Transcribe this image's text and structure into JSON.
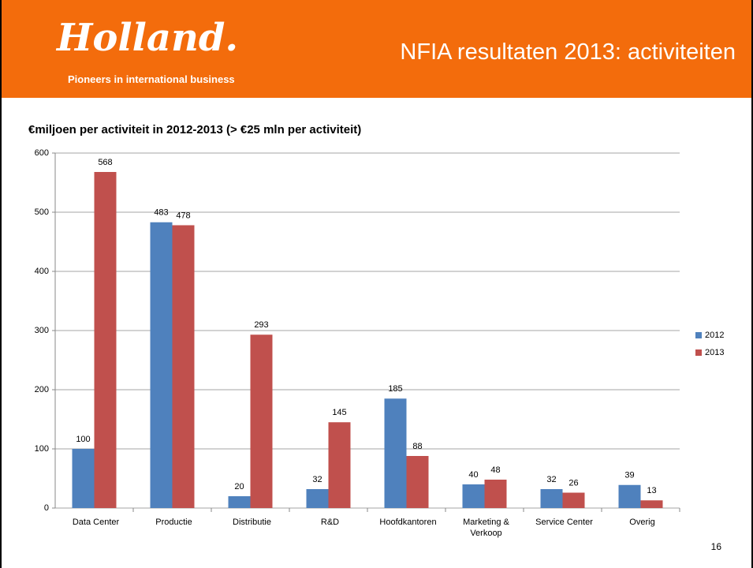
{
  "header": {
    "logo": "Holland.",
    "tagline": "Pioneers in international business",
    "title": "NFIA resultaten 2013: activiteiten"
  },
  "chart_data": {
    "type": "bar",
    "title": "€miljoen per activiteit in 2012-2013 (> €25 mln per activiteit)",
    "categories": [
      "Data Center",
      "Productie",
      "Distributie",
      "R&D",
      "Hoofdkantoren",
      "Marketing & Verkoop",
      "Service Center",
      "Overig"
    ],
    "series": [
      {
        "name": "2012",
        "color": "#4f81bd",
        "values": [
          100,
          483,
          20,
          32,
          185,
          40,
          32,
          39
        ]
      },
      {
        "name": "2013",
        "color": "#c0504d",
        "values": [
          568,
          478,
          293,
          145,
          88,
          48,
          26,
          13
        ]
      }
    ],
    "ylim": [
      0,
      600
    ],
    "yticks": [
      0,
      100,
      200,
      300,
      400,
      500,
      600
    ],
    "grid": true,
    "legend": "right"
  },
  "page_number": "16"
}
